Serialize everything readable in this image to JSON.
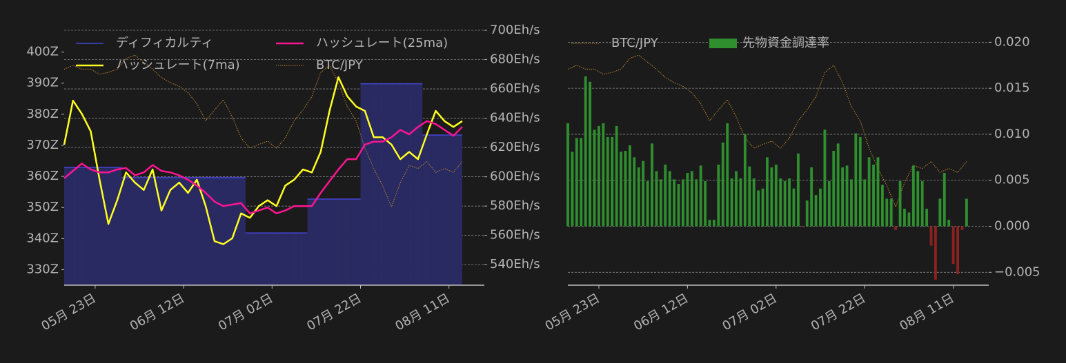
{
  "chart_data": [
    {
      "type": "line",
      "x": [
        "05-16",
        "05-18",
        "05-20",
        "05-22",
        "05-24",
        "05-26",
        "05-28",
        "05-30",
        "06-01",
        "06-03",
        "06-05",
        "06-07",
        "06-09",
        "06-11",
        "06-13",
        "06-15",
        "06-17",
        "06-19",
        "06-21",
        "06-23",
        "06-25",
        "06-27",
        "06-29",
        "07-01",
        "07-03",
        "07-05",
        "07-07",
        "07-09",
        "07-11",
        "07-13",
        "07-15",
        "07-17",
        "07-19",
        "07-21",
        "07-23",
        "07-25",
        "07-27",
        "07-29",
        "07-31",
        "08-02",
        "08-04",
        "08-06",
        "08-08",
        "08-10",
        "08-12",
        "08-14"
      ],
      "xlim": [
        "05-16",
        "08-19"
      ],
      "xticks": [
        {
          "value": "05-23",
          "label": "05月 23日"
        },
        {
          "value": "06-12",
          "label": "06月 12日"
        },
        {
          "value": "07-02",
          "label": "07月 02日"
        },
        {
          "value": "07-22",
          "label": "07月 22日"
        },
        {
          "value": "08-11",
          "label": "08月 11日"
        }
      ],
      "ylim": [
        325,
        407
      ],
      "yticks": [
        {
          "value": 330,
          "label": "330Z"
        },
        {
          "value": 340,
          "label": "340Z"
        },
        {
          "value": 350,
          "label": "350Z"
        },
        {
          "value": 360,
          "label": "360Z"
        },
        {
          "value": 370,
          "label": "370Z"
        },
        {
          "value": 380,
          "label": "380Z"
        },
        {
          "value": 390,
          "label": "390Z"
        },
        {
          "value": 400,
          "label": "400Z"
        }
      ],
      "y2lim": [
        526,
        700
      ],
      "y2ticks": [
        {
          "value": 540,
          "label": "540Eh/s"
        },
        {
          "value": 560,
          "label": "560Eh/s"
        },
        {
          "value": 580,
          "label": "580Eh/s"
        },
        {
          "value": 600,
          "label": "600Eh/s"
        },
        {
          "value": 620,
          "label": "620Eh/s"
        },
        {
          "value": 640,
          "label": "640Eh/s"
        },
        {
          "value": 660,
          "label": "660Eh/s"
        },
        {
          "value": 680,
          "label": "680Eh/s"
        },
        {
          "value": 700,
          "label": "700Eh/s"
        }
      ],
      "y3lim": [
        13000000,
        17000000
      ],
      "grid": "y2",
      "legend": "upper left",
      "legend_columns": 2,
      "series": [
        {
          "name": "ディフィカルティ",
          "color": "#4646d8",
          "fill": "#2a2a62",
          "style": "step-area",
          "values": [
            362.9,
            362.9,
            362.9,
            362.9,
            362.9,
            362.9,
            362.9,
            359.6,
            359.6,
            359.6,
            359.6,
            359.6,
            359.6,
            359.6,
            359.6,
            359.6,
            359.6,
            359.6,
            359.6,
            359.6,
            359.6,
            341.8,
            341.8,
            341.8,
            341.8,
            341.8,
            341.8,
            341.8,
            352.7,
            352.7,
            352.7,
            352.7,
            352.7,
            352.7,
            389.8,
            389.8,
            389.8,
            389.8,
            389.8,
            389.8,
            389.8,
            373.3,
            373.3,
            373.3,
            373.3,
            373.3
          ]
        },
        {
          "name": "ハッシュレート(7ma)",
          "color": "#ffff22",
          "axis": "y2",
          "values": [
            621.9,
            652,
            643,
            631,
            598,
            567.8,
            584,
            603,
            596,
            591,
            605,
            577,
            591,
            596,
            589,
            598,
            580,
            556,
            554,
            558,
            575,
            572,
            580,
            584,
            580,
            594,
            598,
            605,
            603,
            617,
            645,
            668,
            655,
            648,
            645,
            627,
            627,
            622,
            612,
            617,
            612,
            629,
            645,
            638,
            634,
            638
          ]
        },
        {
          "name": "ハッシュレート(25ma)",
          "color": "#ff1493",
          "axis": "y2",
          "values": [
            599,
            604,
            609,
            605,
            603,
            603,
            605,
            606,
            601,
            603,
            608,
            604,
            603,
            601,
            598,
            594,
            589,
            583,
            580,
            581,
            582,
            575,
            577,
            579,
            575,
            577,
            580,
            580,
            580,
            589,
            597,
            605,
            612,
            612,
            622,
            624,
            624,
            627,
            632,
            629,
            634,
            638,
            636,
            632,
            628,
            634
          ]
        },
        {
          "name": "BTC/JPY",
          "color": "#b8862b",
          "axis": "y3",
          "style": "dotted",
          "values": [
            16390000,
            16450000,
            16390000,
            16390000,
            16310000,
            16340000,
            16390000,
            16560000,
            16610000,
            16500000,
            16390000,
            16260000,
            16180000,
            16120000,
            16020000,
            15850000,
            15580000,
            15750000,
            15910000,
            15640000,
            15310000,
            15150000,
            15210000,
            15260000,
            15150000,
            15310000,
            15580000,
            15750000,
            15960000,
            16340000,
            16450000,
            16180000,
            15800000,
            15580000,
            15150000,
            14830000,
            14560000,
            14230000,
            14610000,
            14880000,
            14830000,
            14940000,
            14770000,
            14830000,
            14770000,
            14940000
          ]
        }
      ]
    },
    {
      "type": "bar",
      "x": [
        "05-16",
        "05-17",
        "05-18",
        "05-19",
        "05-20",
        "05-21",
        "05-22",
        "05-23",
        "05-24",
        "05-25",
        "05-26",
        "05-27",
        "05-28",
        "05-29",
        "05-30",
        "05-31",
        "06-01",
        "06-02",
        "06-03",
        "06-04",
        "06-05",
        "06-06",
        "06-07",
        "06-08",
        "06-09",
        "06-10",
        "06-11",
        "06-12",
        "06-13",
        "06-14",
        "06-15",
        "06-16",
        "06-17",
        "06-18",
        "06-19",
        "06-20",
        "06-21",
        "06-22",
        "06-23",
        "06-24",
        "06-25",
        "06-26",
        "06-27",
        "06-28",
        "06-29",
        "06-30",
        "07-01",
        "07-02",
        "07-03",
        "07-04",
        "07-05",
        "07-06",
        "07-07",
        "07-08",
        "07-09",
        "07-10",
        "07-11",
        "07-12",
        "07-13",
        "07-14",
        "07-15",
        "07-16",
        "07-17",
        "07-18",
        "07-19",
        "07-20",
        "07-21",
        "07-22",
        "07-23",
        "07-24",
        "07-25",
        "07-26",
        "07-27",
        "07-28",
        "07-29",
        "07-30",
        "07-31",
        "08-01",
        "08-02",
        "08-03",
        "08-04",
        "08-05",
        "08-06",
        "08-07",
        "08-08",
        "08-09",
        "08-10",
        "08-11",
        "08-12",
        "08-13",
        "08-14"
      ],
      "xlim": [
        "05-16",
        "08-19"
      ],
      "xticks": [
        {
          "value": "05-23",
          "label": "05月 23日"
        },
        {
          "value": "06-12",
          "label": "06月 12日"
        },
        {
          "value": "07-02",
          "label": "07月 02日"
        },
        {
          "value": "07-22",
          "label": "07月 22日"
        },
        {
          "value": "08-11",
          "label": "08月 11日"
        }
      ],
      "ylim": [
        -0.0064,
        0.0213
      ],
      "yticks": [
        {
          "value": -0.005,
          "label": "−0.005"
        },
        {
          "value": 0,
          "label": "0.000"
        },
        {
          "value": 0.005,
          "label": "0.005"
        },
        {
          "value": 0.01,
          "label": "0.010"
        },
        {
          "value": 0.015,
          "label": "0.015"
        },
        {
          "value": 0.02,
          "label": "0.020"
        }
      ],
      "y_side": "right",
      "y3lim": [
        13000000,
        17000000
      ],
      "grid": "y",
      "legend": "upper left",
      "legend_columns": 2,
      "series": [
        {
          "name": "BTC/JPY",
          "color": "#b8862b",
          "axis": "y3",
          "style": "dotted",
          "x": [
            "05-16",
            "05-18",
            "05-20",
            "05-22",
            "05-24",
            "05-26",
            "05-28",
            "05-30",
            "06-01",
            "06-03",
            "06-05",
            "06-07",
            "06-09",
            "06-11",
            "06-13",
            "06-15",
            "06-17",
            "06-19",
            "06-21",
            "06-23",
            "06-25",
            "06-27",
            "06-29",
            "07-01",
            "07-03",
            "07-05",
            "07-07",
            "07-09",
            "07-11",
            "07-13",
            "07-15",
            "07-17",
            "07-19",
            "07-21",
            "07-23",
            "07-25",
            "07-27",
            "07-29",
            "07-31",
            "08-02",
            "08-04",
            "08-06",
            "08-08",
            "08-10",
            "08-12",
            "08-14"
          ],
          "values": [
            16390000,
            16450000,
            16390000,
            16390000,
            16310000,
            16340000,
            16390000,
            16560000,
            16610000,
            16500000,
            16390000,
            16260000,
            16180000,
            16120000,
            16020000,
            15850000,
            15580000,
            15750000,
            15910000,
            15640000,
            15310000,
            15150000,
            15210000,
            15260000,
            15150000,
            15310000,
            15580000,
            15750000,
            15960000,
            16340000,
            16450000,
            16180000,
            15800000,
            15580000,
            15150000,
            14830000,
            14560000,
            14230000,
            14610000,
            14880000,
            14830000,
            14940000,
            14770000,
            14830000,
            14770000,
            14940000
          ]
        },
        {
          "name": "先物資金調達率",
          "color": "#2f8f2f",
          "negative_color": "#8b2222",
          "values": [
            0.0112,
            0.0081,
            0.0096,
            0.0096,
            0.0163,
            0.0157,
            0.0105,
            0.0109,
            0.0112,
            0.0097,
            0.0097,
            0.0109,
            0.0081,
            0.0082,
            0.0088,
            0.0075,
            0.0064,
            0.0071,
            0.0049,
            0.009,
            0.006,
            0.0051,
            0.0067,
            0.006,
            0.0051,
            0.0046,
            0.0051,
            0.0058,
            0.006,
            0.0051,
            0.0066,
            0.0049,
            0.0007,
            0.0007,
            0.0067,
            0.0091,
            0.0112,
            0.0052,
            0.006,
            0.0052,
            0.01,
            0.0065,
            0.0052,
            0.0039,
            0.0041,
            0.0075,
            0.0064,
            0.0067,
            0.0052,
            0.0049,
            0.0052,
            0.0041,
            0.0079,
            -0.0001,
            0.0028,
            0.0064,
            0.0034,
            0.0041,
            0.0105,
            0.0049,
            0.0082,
            0.009,
            0.0064,
            0.0066,
            0.0051,
            0.0101,
            0.0097,
            0.0051,
            0.0075,
            0.0067,
            0.0075,
            0.0045,
            0.003,
            0.003,
            -0.0004,
            0.0049,
            0.0019,
            0.0015,
            0.0066,
            0.006,
            0.0049,
            0.0019,
            -0.0021,
            -0.0058,
            0.003,
            0.0058,
            0.0007,
            -0.0041,
            -0.0052,
            -0.0004,
            0.003
          ]
        }
      ]
    }
  ]
}
